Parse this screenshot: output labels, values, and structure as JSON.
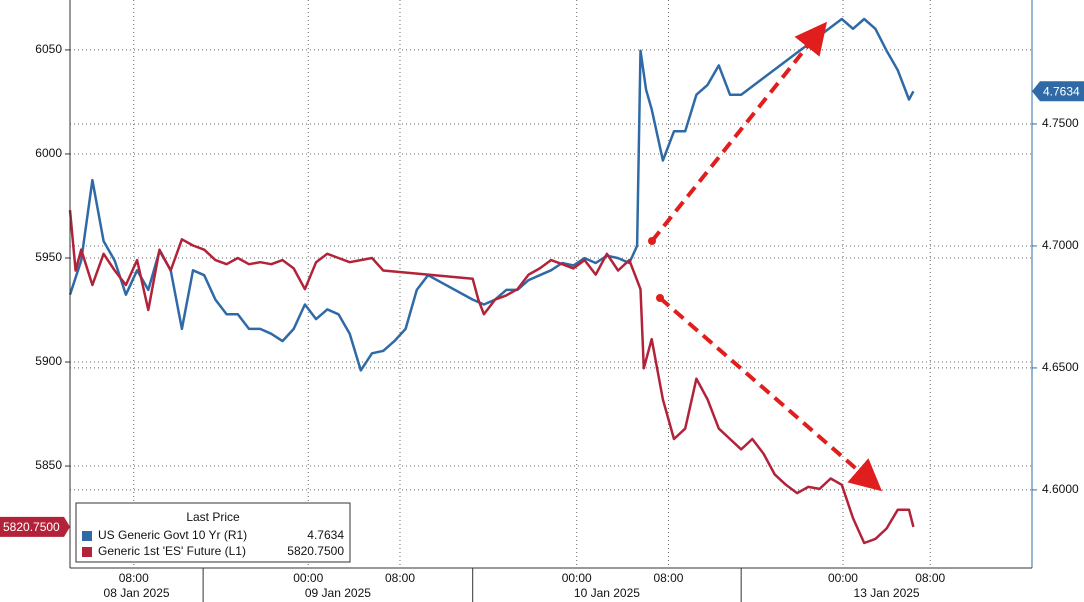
{
  "chart_data": {
    "type": "line",
    "xlim": [
      0,
      86
    ],
    "xticks": [
      {
        "value": 5.7,
        "label": "08:00"
      },
      {
        "value": 21.3,
        "label": "00:00"
      },
      {
        "value": 29.5,
        "label": "08:00"
      },
      {
        "value": 45.3,
        "label": "00:00"
      },
      {
        "value": 53.5,
        "label": "08:00"
      },
      {
        "value": 69.1,
        "label": "00:00"
      },
      {
        "value": 76.9,
        "label": "08:00"
      }
    ],
    "x_dates": [
      {
        "label": "08 Jan 2025",
        "start": 0,
        "end": 11.9
      },
      {
        "label": "09 Jan 2025",
        "start": 11.9,
        "end": 36
      },
      {
        "label": "10 Jan 2025",
        "start": 36,
        "end": 60
      },
      {
        "label": "13 Jan 2025",
        "start": 60,
        "end": 86
      }
    ],
    "ylim": [
      5801,
      6074
    ],
    "yticks": [
      5850,
      5900,
      5950,
      6000,
      6050
    ],
    "y2lim": [
      4.568,
      4.8008
    ],
    "y2ticks": [
      {
        "value": 4.6,
        "label": "4.6000"
      },
      {
        "value": 4.65,
        "label": "4.6500"
      },
      {
        "value": 4.7,
        "label": "4.7000"
      },
      {
        "value": 4.75,
        "label": "4.7500"
      }
    ],
    "grid": true,
    "legend_title": "Last Price",
    "series": [
      {
        "name": "US Generic Govt 10 Yr (R1)",
        "color": "#2f6aa6",
        "axis": "y2",
        "last": 4.7634,
        "x": [
          0,
          1,
          2,
          3,
          4,
          5,
          6,
          7,
          8,
          9,
          10,
          11,
          12,
          13,
          14,
          15,
          16,
          17,
          18,
          19,
          20,
          21,
          22,
          23,
          24,
          25,
          26,
          27,
          28,
          29,
          30,
          31,
          32,
          36,
          37,
          38,
          39,
          40,
          41,
          42,
          43,
          44,
          45,
          46,
          47,
          48,
          49,
          50,
          50.7,
          51,
          51.5,
          52,
          53,
          54,
          55,
          56,
          57,
          58,
          59,
          60,
          69,
          70,
          71,
          72,
          73,
          74,
          75,
          75.4
        ],
        "values": [
          4.68,
          4.694,
          4.727,
          4.702,
          4.694,
          4.68,
          4.69,
          4.682,
          4.698,
          4.69,
          4.666,
          4.69,
          4.688,
          4.678,
          4.672,
          4.672,
          4.666,
          4.666,
          4.664,
          4.661,
          4.666,
          4.676,
          4.67,
          4.674,
          4.672,
          4.664,
          4.649,
          4.656,
          4.657,
          4.661,
          4.666,
          4.682,
          4.688,
          4.678,
          4.676,
          4.678,
          4.682,
          4.682,
          4.686,
          4.688,
          4.69,
          4.693,
          4.692,
          4.695,
          4.693,
          4.696,
          4.695,
          4.693,
          4.7,
          4.78,
          4.764,
          4.756,
          4.735,
          4.747,
          4.747,
          4.762,
          4.766,
          4.774,
          4.762,
          4.762,
          4.793,
          4.789,
          4.793,
          4.789,
          4.78,
          4.772,
          4.76,
          4.7634
        ]
      },
      {
        "name": "Generic 1st 'ES' Future (L1)",
        "color": "#b2233a",
        "last": {
          "value": 5820.75,
          "label": "5820.7500"
        },
        "x": [
          0,
          0.5,
          1,
          2,
          3,
          4,
          5,
          6,
          7,
          8,
          9,
          10,
          11,
          12,
          13,
          14,
          15,
          16,
          17,
          18,
          19,
          20,
          21,
          22,
          23,
          24,
          25,
          26,
          27,
          28,
          36,
          36.5,
          37,
          38,
          39,
          40,
          41,
          42,
          43,
          44,
          45,
          46,
          47,
          48,
          49,
          50,
          51,
          51.3,
          52,
          53,
          54,
          55,
          56,
          57,
          58,
          59,
          60,
          61,
          62,
          63,
          64,
          65,
          66,
          67,
          68,
          69,
          70,
          71,
          72,
          73,
          74,
          75,
          75.4
        ],
        "values": [
          5973,
          5944,
          5954,
          5937,
          5952,
          5944,
          5937,
          5949,
          5925,
          5954,
          5944,
          5959,
          5956,
          5954,
          5949,
          5947,
          5950,
          5947,
          5948,
          5947,
          5949,
          5945,
          5935,
          5948,
          5952,
          5950,
          5948,
          5949,
          5950,
          5944,
          5940,
          5930,
          5923,
          5930,
          5932,
          5935,
          5942,
          5945,
          5949,
          5947,
          5945,
          5949,
          5942,
          5952,
          5944,
          5949,
          5935,
          5897,
          5911,
          5882,
          5863,
          5868,
          5892,
          5882,
          5868,
          5863,
          5858,
          5863,
          5856,
          5846,
          5841,
          5837,
          5840,
          5839,
          5844,
          5841,
          5825,
          5813,
          5815,
          5820,
          5829,
          5829,
          5820.75
        ]
      }
    ]
  }
}
